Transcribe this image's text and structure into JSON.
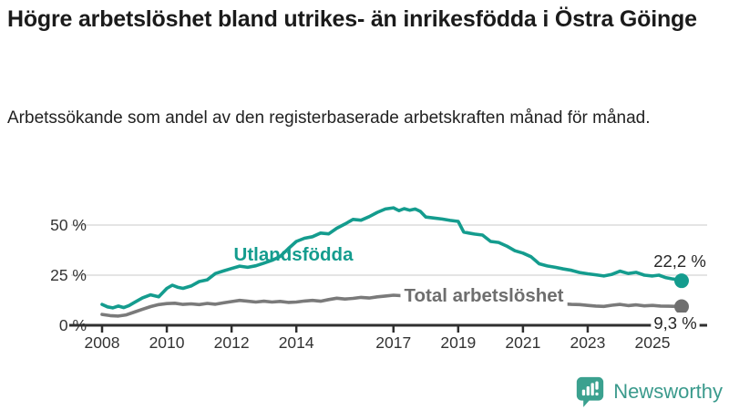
{
  "header": {
    "title": "Högre arbetslöshet bland utrikes- än inrikesfödda i Östra Göinge",
    "subtitle": "Arbetssökande som andel av den registerbaserade arbetskraften månad för månad."
  },
  "footer": {
    "brand": "Newsworthy"
  },
  "colors": {
    "foreign_line": "#149c8e",
    "total_line": "#7a7a7a",
    "total_label": "#6e6e6e",
    "axis": "#2f2f2f",
    "grid": "#dcdcdc",
    "tick_text": "#333333",
    "value_text": "#262626",
    "brand_teal": "#3ba18f",
    "background": "#ffffff"
  },
  "chart_data": {
    "type": "line",
    "title": "Högre arbetslöshet bland utrikes- än inrikesfödda i Östra Göinge",
    "subtitle": "Arbetssökande som andel av den registerbaserade arbetskraften månad för månad.",
    "x_axis": {
      "ticks": [
        2008,
        2010,
        2012,
        2014,
        2017,
        2019,
        2021,
        2023,
        2025
      ],
      "tick_labels": [
        "2008",
        "2010",
        "2012",
        "2014",
        "2017",
        "2019",
        "2021",
        "2023",
        "2025"
      ],
      "range": [
        2008,
        2025.9
      ]
    },
    "y_axis": {
      "ticks": [
        0,
        25,
        50
      ],
      "tick_labels": [
        "0 %",
        "25 %",
        "50 %"
      ],
      "gridlines": [
        25,
        50
      ],
      "range": [
        0,
        62
      ],
      "unit": "%"
    },
    "legend_position": "inline-labels",
    "grid": true,
    "series": [
      {
        "id": "utlandsfodda",
        "name": "Utlandsfödda",
        "end_label": "22,2 %",
        "end_value": 22.2,
        "points": [
          [
            2008.0,
            10.4
          ],
          [
            2008.17,
            9.2
          ],
          [
            2008.33,
            8.7
          ],
          [
            2008.5,
            9.6
          ],
          [
            2008.67,
            8.8
          ],
          [
            2008.83,
            9.8
          ],
          [
            2009.0,
            11.4
          ],
          [
            2009.25,
            13.7
          ],
          [
            2009.5,
            15.2
          ],
          [
            2009.75,
            14.2
          ],
          [
            2010.0,
            18.4
          ],
          [
            2010.17,
            20.0
          ],
          [
            2010.33,
            19.0
          ],
          [
            2010.5,
            18.4
          ],
          [
            2010.75,
            19.6
          ],
          [
            2011.0,
            21.8
          ],
          [
            2011.25,
            22.7
          ],
          [
            2011.5,
            25.8
          ],
          [
            2011.75,
            27.1
          ],
          [
            2012.0,
            28.3
          ],
          [
            2012.25,
            29.5
          ],
          [
            2012.5,
            28.9
          ],
          [
            2012.75,
            29.7
          ],
          [
            2013.0,
            31.0
          ],
          [
            2013.25,
            32.4
          ],
          [
            2013.5,
            34.3
          ],
          [
            2013.75,
            38.2
          ],
          [
            2014.0,
            41.8
          ],
          [
            2014.25,
            43.4
          ],
          [
            2014.5,
            44.2
          ],
          [
            2014.75,
            46.0
          ],
          [
            2015.0,
            45.6
          ],
          [
            2015.25,
            48.4
          ],
          [
            2015.5,
            50.5
          ],
          [
            2015.75,
            52.8
          ],
          [
            2016.0,
            52.4
          ],
          [
            2016.25,
            54.2
          ],
          [
            2016.5,
            56.3
          ],
          [
            2016.75,
            58.0
          ],
          [
            2017.0,
            58.6
          ],
          [
            2017.17,
            57.2
          ],
          [
            2017.33,
            58.2
          ],
          [
            2017.5,
            57.4
          ],
          [
            2017.67,
            58.0
          ],
          [
            2017.83,
            56.8
          ],
          [
            2018.0,
            54.0
          ],
          [
            2018.25,
            53.5
          ],
          [
            2018.5,
            53.0
          ],
          [
            2018.75,
            52.3
          ],
          [
            2019.0,
            51.8
          ],
          [
            2019.17,
            46.5
          ],
          [
            2019.33,
            46.0
          ],
          [
            2019.5,
            45.5
          ],
          [
            2019.75,
            45.0
          ],
          [
            2020.0,
            41.8
          ],
          [
            2020.25,
            41.3
          ],
          [
            2020.5,
            39.5
          ],
          [
            2020.75,
            37.2
          ],
          [
            2021.0,
            36.0
          ],
          [
            2021.25,
            34.2
          ],
          [
            2021.5,
            30.7
          ],
          [
            2021.75,
            29.6
          ],
          [
            2022.0,
            28.9
          ],
          [
            2022.25,
            28.1
          ],
          [
            2022.5,
            27.4
          ],
          [
            2022.75,
            26.3
          ],
          [
            2023.0,
            25.7
          ],
          [
            2023.25,
            25.2
          ],
          [
            2023.5,
            24.6
          ],
          [
            2023.75,
            25.4
          ],
          [
            2024.0,
            27.0
          ],
          [
            2024.25,
            25.8
          ],
          [
            2024.5,
            26.4
          ],
          [
            2024.75,
            25.0
          ],
          [
            2025.0,
            24.6
          ],
          [
            2025.2,
            25.0
          ],
          [
            2025.4,
            23.8
          ],
          [
            2025.6,
            23.2
          ],
          [
            2025.75,
            22.8
          ],
          [
            2025.9,
            22.2
          ]
        ]
      },
      {
        "id": "total",
        "name": "Total arbetslöshet",
        "end_label": "9,3 %",
        "end_value": 9.3,
        "points": [
          [
            2008.0,
            5.4
          ],
          [
            2008.25,
            4.8
          ],
          [
            2008.5,
            4.6
          ],
          [
            2008.75,
            5.2
          ],
          [
            2009.0,
            6.6
          ],
          [
            2009.25,
            8.0
          ],
          [
            2009.5,
            9.3
          ],
          [
            2009.75,
            10.3
          ],
          [
            2010.0,
            10.8
          ],
          [
            2010.25,
            11.0
          ],
          [
            2010.5,
            10.4
          ],
          [
            2010.75,
            10.7
          ],
          [
            2011.0,
            10.3
          ],
          [
            2011.25,
            10.9
          ],
          [
            2011.5,
            10.5
          ],
          [
            2011.75,
            11.2
          ],
          [
            2012.0,
            11.8
          ],
          [
            2012.25,
            12.4
          ],
          [
            2012.5,
            12.0
          ],
          [
            2012.75,
            11.6
          ],
          [
            2013.0,
            12.0
          ],
          [
            2013.25,
            11.6
          ],
          [
            2013.5,
            11.9
          ],
          [
            2013.75,
            11.4
          ],
          [
            2014.0,
            11.6
          ],
          [
            2014.25,
            12.1
          ],
          [
            2014.5,
            12.4
          ],
          [
            2014.75,
            12.0
          ],
          [
            2015.0,
            12.8
          ],
          [
            2015.25,
            13.5
          ],
          [
            2015.5,
            13.1
          ],
          [
            2015.75,
            13.4
          ],
          [
            2016.0,
            13.9
          ],
          [
            2016.25,
            13.6
          ],
          [
            2016.5,
            14.2
          ],
          [
            2016.75,
            14.6
          ],
          [
            2017.0,
            15.0
          ],
          [
            2017.5,
            14.5
          ],
          [
            2018.0,
            13.9
          ],
          [
            2018.5,
            13.4
          ],
          [
            2019.0,
            12.8
          ],
          [
            2019.5,
            12.3
          ],
          [
            2020.0,
            12.6
          ],
          [
            2020.5,
            12.9
          ],
          [
            2021.0,
            12.2
          ],
          [
            2021.5,
            11.4
          ],
          [
            2022.0,
            10.9
          ],
          [
            2022.5,
            10.4
          ],
          [
            2022.75,
            10.3
          ],
          [
            2023.0,
            9.9
          ],
          [
            2023.25,
            9.6
          ],
          [
            2023.5,
            9.4
          ],
          [
            2023.75,
            10.0
          ],
          [
            2024.0,
            10.4
          ],
          [
            2024.25,
            9.8
          ],
          [
            2024.5,
            10.2
          ],
          [
            2024.75,
            9.7
          ],
          [
            2025.0,
            9.9
          ],
          [
            2025.25,
            9.6
          ],
          [
            2025.5,
            9.5
          ],
          [
            2025.75,
            9.4
          ],
          [
            2025.9,
            9.3
          ]
        ]
      }
    ]
  }
}
